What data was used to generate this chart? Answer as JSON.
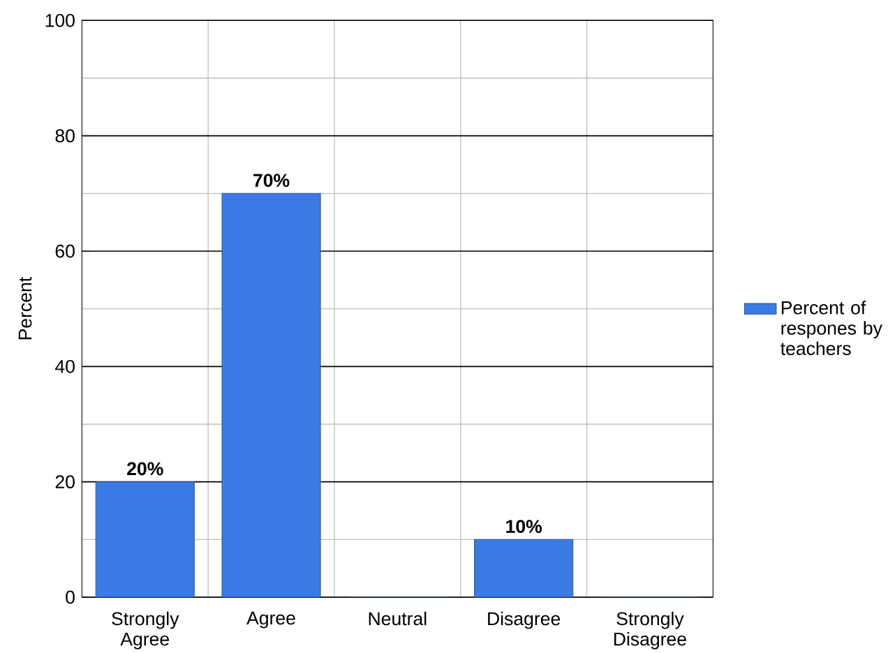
{
  "chart_data": {
    "type": "bar",
    "ylabel": "Percent",
    "categories": [
      "Strongly Agree",
      "Agree",
      "Neutral",
      "Disagree",
      "Strongly Disagree"
    ],
    "series": [
      {
        "name": "Percent of respones by teachers",
        "color": "#3a7be6",
        "values": [
          20,
          70,
          0,
          10,
          0
        ],
        "value_labels": [
          "20%",
          "70%",
          null,
          "10%",
          null
        ]
      }
    ],
    "ylim": [
      0,
      100
    ],
    "yticks": [
      0,
      20,
      40,
      60,
      80,
      100
    ],
    "grid": true,
    "legend": "right"
  }
}
